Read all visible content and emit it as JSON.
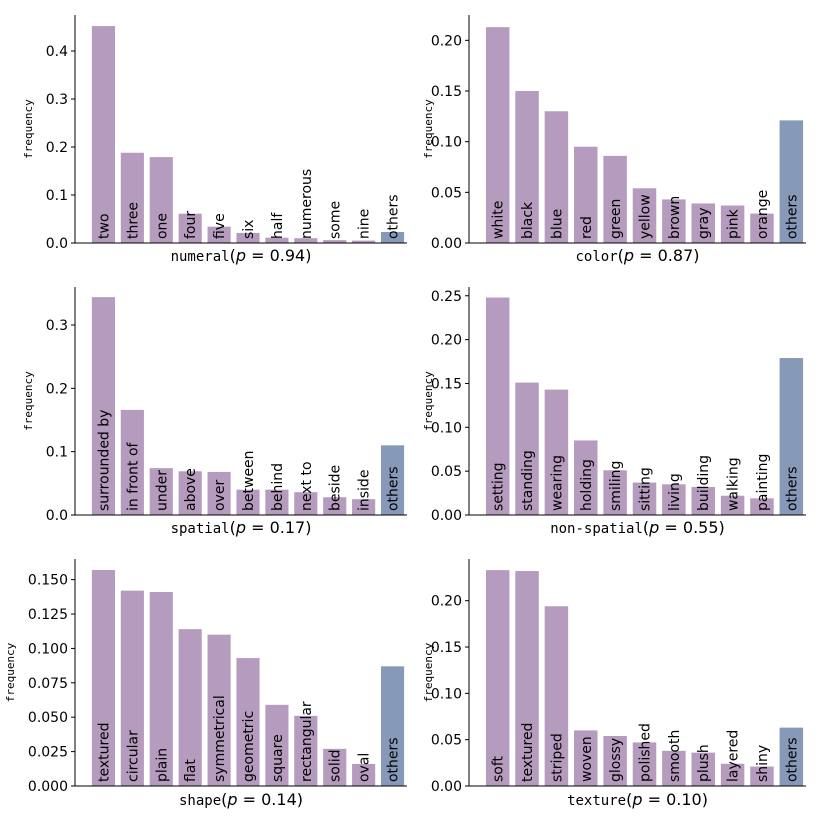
{
  "colors": {
    "bar": "#b59bbd",
    "others": "#8799b8"
  },
  "ylabel": "frequency",
  "chart_data": [
    {
      "type": "bar",
      "title": "",
      "xlabel_prefix": "numeral",
      "xlabel_p": "0.94",
      "ylabel": "frequency",
      "ylim": [
        0,
        0.475
      ],
      "yticks": [
        0.0,
        0.1,
        0.2,
        0.3,
        0.4
      ],
      "tick_decimals": 1,
      "categories": [
        "two",
        "three",
        "one",
        "four",
        "five",
        "six",
        "half",
        "numerous",
        "some",
        "nine",
        "others"
      ],
      "values": [
        0.452,
        0.188,
        0.179,
        0.061,
        0.034,
        0.021,
        0.011,
        0.01,
        0.006,
        0.005,
        0.023
      ]
    },
    {
      "type": "bar",
      "title": "",
      "xlabel_prefix": "color",
      "xlabel_p": "0.87",
      "ylabel": "frequency",
      "ylim": [
        0,
        0.225
      ],
      "yticks": [
        0.0,
        0.05,
        0.1,
        0.15,
        0.2
      ],
      "tick_decimals": 2,
      "categories": [
        "white",
        "black",
        "blue",
        "red",
        "green",
        "yellow",
        "brown",
        "gray",
        "pink",
        "orange",
        "others"
      ],
      "values": [
        0.213,
        0.15,
        0.13,
        0.095,
        0.086,
        0.054,
        0.043,
        0.039,
        0.037,
        0.029,
        0.121
      ]
    },
    {
      "type": "bar",
      "title": "",
      "xlabel_prefix": "spatial",
      "xlabel_p": "0.17",
      "ylabel": "frequency",
      "ylim": [
        0,
        0.36
      ],
      "yticks": [
        0.0,
        0.1,
        0.2,
        0.3
      ],
      "tick_decimals": 1,
      "categories": [
        "surrounded by",
        "in front of",
        "under",
        "above",
        "over",
        "between",
        "behind",
        "next to",
        "beside",
        "inside",
        "others"
      ],
      "values": [
        0.344,
        0.166,
        0.074,
        0.069,
        0.068,
        0.04,
        0.04,
        0.036,
        0.028,
        0.025,
        0.11
      ]
    },
    {
      "type": "bar",
      "title": "",
      "xlabel_prefix": "non-spatial",
      "xlabel_p": "0.55",
      "ylabel": "frequency",
      "ylim": [
        0,
        0.26
      ],
      "yticks": [
        0.0,
        0.05,
        0.1,
        0.15,
        0.2,
        0.25
      ],
      "tick_decimals": 2,
      "categories": [
        "setting",
        "standing",
        "wearing",
        "holding",
        "smiling",
        "sitting",
        "living",
        "building",
        "walking",
        "painting",
        "others"
      ],
      "values": [
        0.248,
        0.151,
        0.143,
        0.085,
        0.051,
        0.037,
        0.035,
        0.032,
        0.022,
        0.019,
        0.179
      ]
    },
    {
      "type": "bar",
      "title": "",
      "xlabel_prefix": "shape",
      "xlabel_p": "0.14",
      "ylabel": "frequency",
      "ylim": [
        0,
        0.165
      ],
      "yticks": [
        0.0,
        0.025,
        0.05,
        0.075,
        0.1,
        0.125,
        0.15
      ],
      "tick_decimals": 3,
      "categories": [
        "textured",
        "circular",
        "plain",
        "flat",
        "symmetrical",
        "geometric",
        "square",
        "rectangular",
        "solid",
        "oval",
        "others"
      ],
      "values": [
        0.157,
        0.142,
        0.141,
        0.114,
        0.11,
        0.093,
        0.059,
        0.051,
        0.027,
        0.016,
        0.087
      ]
    },
    {
      "type": "bar",
      "title": "",
      "xlabel_prefix": "texture",
      "xlabel_p": "0.10",
      "ylabel": "frequency",
      "ylim": [
        0,
        0.245
      ],
      "yticks": [
        0.0,
        0.05,
        0.1,
        0.15,
        0.2
      ],
      "tick_decimals": 2,
      "categories": [
        "soft",
        "textured",
        "striped",
        "woven",
        "glossy",
        "polished",
        "smooth",
        "plush",
        "layered",
        "shiny",
        "others"
      ],
      "values": [
        0.233,
        0.232,
        0.194,
        0.06,
        0.054,
        0.047,
        0.038,
        0.036,
        0.024,
        0.021,
        0.063
      ]
    }
  ]
}
